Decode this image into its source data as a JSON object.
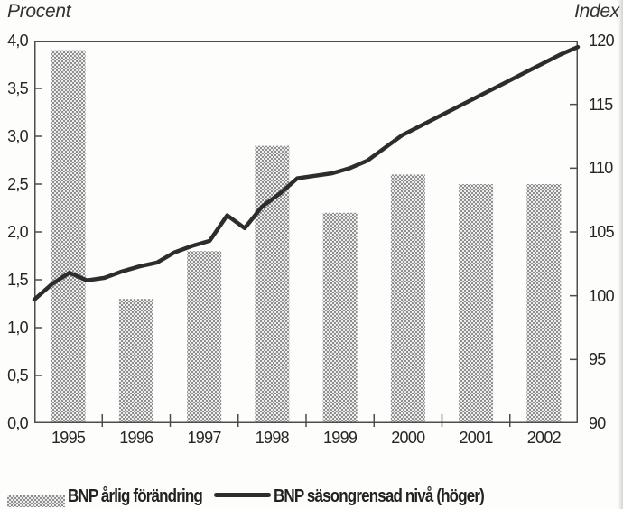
{
  "chart_data": {
    "type": "bar",
    "combo": "bar + line, dual axis",
    "title": "",
    "grid": false,
    "legend_position": "bottom",
    "categories": [
      "1995",
      "1996",
      "1997",
      "1998",
      "1999",
      "2000",
      "2001",
      "2002"
    ],
    "bar_series": {
      "name": "BNP årlig förändring",
      "axis": "left",
      "values": [
        3.9,
        1.3,
        1.8,
        2.9,
        2.2,
        2.6,
        2.5,
        2.5
      ]
    },
    "line_series": {
      "name": "BNP säsongrensad nivå (höger)",
      "axis": "right",
      "frequency": "quarterly",
      "values": [
        99.7,
        100.9,
        101.8,
        101.2,
        101.4,
        101.9,
        102.3,
        102.6,
        103.4,
        103.9,
        104.3,
        106.3,
        105.3,
        107.0,
        108.0,
        109.2,
        109.4,
        109.6,
        110.0,
        110.6,
        111.6,
        112.6,
        113.3,
        114.0,
        114.7,
        115.4,
        116.1,
        116.8,
        117.5,
        118.2,
        118.9,
        119.5
      ]
    },
    "left_axis": {
      "title": "Procent",
      "min": 0,
      "max": 4,
      "tick_values": [
        0,
        0.5,
        1,
        1.5,
        2,
        2.5,
        3,
        3.5,
        4
      ],
      "tick_labels": [
        "0,0",
        "0,5",
        "1,0",
        "1,5",
        "2,0",
        "2,5",
        "3,0",
        "3,5",
        "4,0"
      ]
    },
    "right_axis": {
      "title": "Index",
      "min": 90,
      "max": 120,
      "tick_values": [
        90,
        95,
        100,
        105,
        110,
        115,
        120
      ],
      "tick_labels": [
        "90",
        "95",
        "100",
        "105",
        "110",
        "115",
        "120"
      ]
    },
    "legend": {
      "bar_label": "BNP årlig förändring",
      "line_label": "BNP säsongrensad nivå (höger)"
    },
    "colors": {
      "bar_dot": "#8f8f8f",
      "bar_bg": "#ededed",
      "line": "#2d2d2d",
      "frame": "#4d4d4d",
      "text": "#262626"
    }
  }
}
